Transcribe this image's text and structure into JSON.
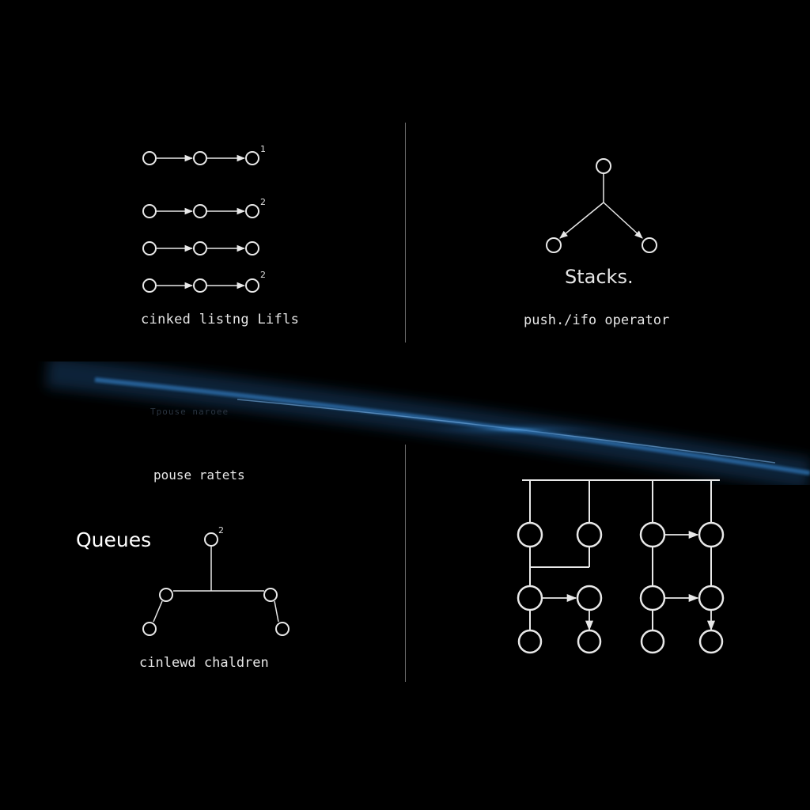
{
  "colors": {
    "background": "#000000",
    "stroke": "#e8e8e8",
    "glow": "#2f6fa8",
    "text": "#e6e6e6"
  },
  "top_left": {
    "caption": "cinked listng Lifls",
    "row_markers": [
      "1",
      "2",
      "",
      "2"
    ]
  },
  "top_right": {
    "title": "Stacks.",
    "caption": "push./ifo operator"
  },
  "bottom_left": {
    "faint_text": "Tpouse naroee",
    "subtitle": "pouse ratets",
    "title": "Queues",
    "node_marker": "2",
    "caption": "cinlewd chaldren"
  }
}
